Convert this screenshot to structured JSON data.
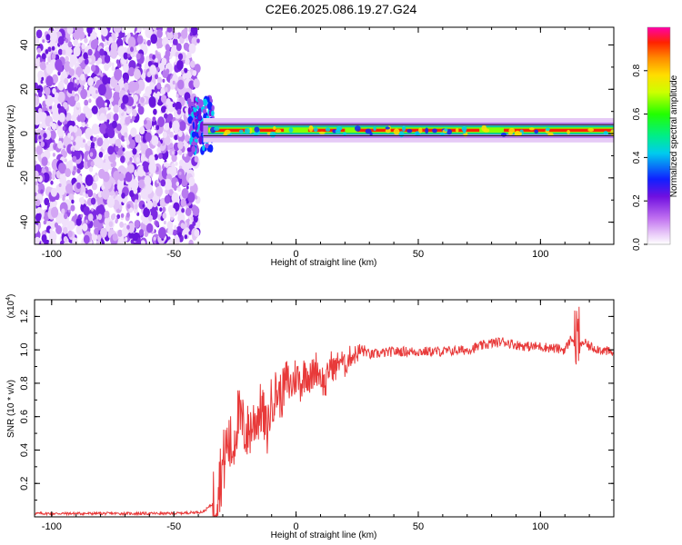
{
  "title": "C2E6.2025.086.19.27.G24",
  "chart_data": [
    {
      "type": "heatmap",
      "xlabel": "Height of straight line (km)",
      "ylabel": "Frequency (Hz)",
      "xlim": [
        -107,
        130
      ],
      "ylim": [
        -50,
        48
      ],
      "x_ticks": [
        "-100",
        "-50",
        "0",
        "50",
        "100"
      ],
      "y_ticks": [
        "-40",
        "-20",
        "0",
        "20",
        "40"
      ],
      "colorbar": {
        "label": "Normalized spectral amplitude",
        "range": [
          0.0,
          1.0
        ],
        "ticks": [
          "0.0",
          "0.2",
          "0.4",
          "0.6",
          "0.8"
        ]
      },
      "features": [
        {
          "region": "x -107 to -40 km",
          "description": "noise spread across all frequencies, amplitude ~0.0-0.2"
        },
        {
          "region": "x -40 to 130 km",
          "description": "narrow band near 0-2 Hz, amplitude up to ~1.0"
        }
      ]
    },
    {
      "type": "line",
      "xlabel": "Height of straight line (km)",
      "ylabel": "SNR (10 * v/v)",
      "scale_note": "(x10",
      "scale_exp": "4",
      "xlim": [
        -107,
        130
      ],
      "ylim": [
        0.0,
        1.3
      ],
      "x_ticks": [
        "-100",
        "-50",
        "0",
        "50",
        "100"
      ],
      "y_ticks": [
        "0.2",
        "0.4",
        "0.6",
        "0.8",
        "1.0",
        "1.2"
      ],
      "series": [
        {
          "color": "#e83a3a",
          "x": [
            -107,
            -80,
            -50,
            -38,
            -34,
            -32,
            -30,
            -28,
            -26,
            -24,
            -22,
            -20,
            -18,
            -16,
            -14,
            -12,
            -10,
            -8,
            -6,
            -4,
            -2,
            0,
            2,
            4,
            6,
            8,
            10,
            12,
            14,
            16,
            18,
            20,
            22,
            24,
            26,
            28,
            30,
            40,
            50,
            60,
            70,
            80,
            85,
            90,
            95,
            100,
            105,
            110,
            113,
            115,
            117,
            120,
            125,
            130
          ],
          "y": [
            0.02,
            0.02,
            0.02,
            0.03,
            0.08,
            0.2,
            0.3,
            0.45,
            0.4,
            0.6,
            0.55,
            0.5,
            0.55,
            0.6,
            0.65,
            0.5,
            0.7,
            0.75,
            0.72,
            0.82,
            0.78,
            0.85,
            0.8,
            0.88,
            0.82,
            0.9,
            0.85,
            0.78,
            0.92,
            0.88,
            0.95,
            0.9,
            0.96,
            0.97,
            0.99,
            1.0,
            0.97,
            0.99,
            0.99,
            0.99,
            1.0,
            1.04,
            1.05,
            1.03,
            1.02,
            1.02,
            1.01,
            1.0,
            1.08,
            0.95,
            1.05,
            1.02,
            1.0,
            0.98
          ]
        }
      ]
    }
  ]
}
